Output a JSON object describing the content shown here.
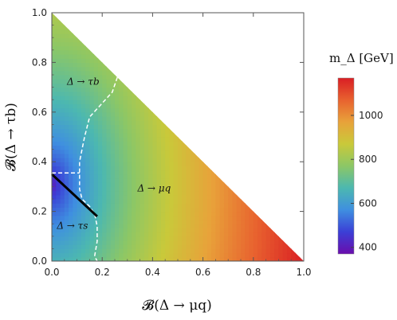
{
  "chart_data": {
    "type": "heatmap",
    "title": "",
    "xlabel": "𝓑(Δ → μq)",
    "ylabel": "𝓑(Δ → τb)",
    "xlim": [
      0,
      1
    ],
    "ylim": [
      0,
      1
    ],
    "x_ticks": [
      "0.0",
      "0.2",
      "0.4",
      "0.6",
      "0.8",
      "1.0"
    ],
    "y_ticks": [
      "0.0",
      "0.2",
      "0.4",
      "0.6",
      "0.8",
      "1.0"
    ],
    "grid": false,
    "domain": "x + y ≤ 1",
    "colorbar": {
      "label": "m_Δ [GeV]",
      "range": [
        370,
        1170
      ],
      "ticks": [
        "400",
        "600",
        "800",
        "1000"
      ],
      "colormap": [
        "#6a0dad",
        "#3b3fd6",
        "#3f8fe0",
        "#4cb8b0",
        "#8cc766",
        "#c9c93a",
        "#e8a23a",
        "#e8622f",
        "#d91e24"
      ]
    },
    "mass_model": {
      "min_mass_GeV": 380,
      "min_at": [
        0.0,
        0.31
      ],
      "max_mass_GeV": 1170,
      "max_at": [
        1.0,
        0.0
      ]
    },
    "regions": [
      {
        "label": "Δ → τb",
        "at": [
          0.06,
          0.71
        ]
      },
      {
        "label": "Δ → μq",
        "at": [
          0.34,
          0.28
        ]
      },
      {
        "label": "Δ → τs",
        "at": [
          0.02,
          0.13
        ]
      }
    ],
    "boundaries": [
      {
        "name": "τb-μq boundary",
        "style": "dashed",
        "color": "#ffffff",
        "points": [
          [
            0.26,
            0.74
          ],
          [
            0.24,
            0.68
          ],
          [
            0.15,
            0.58
          ],
          [
            0.13,
            0.5
          ],
          [
            0.12,
            0.45
          ],
          [
            0.11,
            0.4
          ],
          [
            0.11,
            0.36
          ],
          [
            0.11,
            0.33
          ],
          [
            0.11,
            0.29
          ],
          [
            0.12,
            0.25
          ],
          [
            0.15,
            0.22
          ],
          [
            0.17,
            0.19
          ],
          [
            0.18,
            0.14
          ],
          [
            0.18,
            0.08
          ],
          [
            0.17,
            0.02
          ],
          [
            0.18,
            0.0
          ]
        ]
      },
      {
        "name": "τb-τs boundary",
        "style": "dashed",
        "color": "#ffffff",
        "points": [
          [
            0.0,
            0.355
          ],
          [
            0.11,
            0.355
          ]
        ]
      },
      {
        "name": "excluded edge",
        "style": "solid",
        "color": "#000000",
        "points": [
          [
            0.0,
            0.35
          ],
          [
            0.18,
            0.18
          ]
        ]
      }
    ]
  }
}
